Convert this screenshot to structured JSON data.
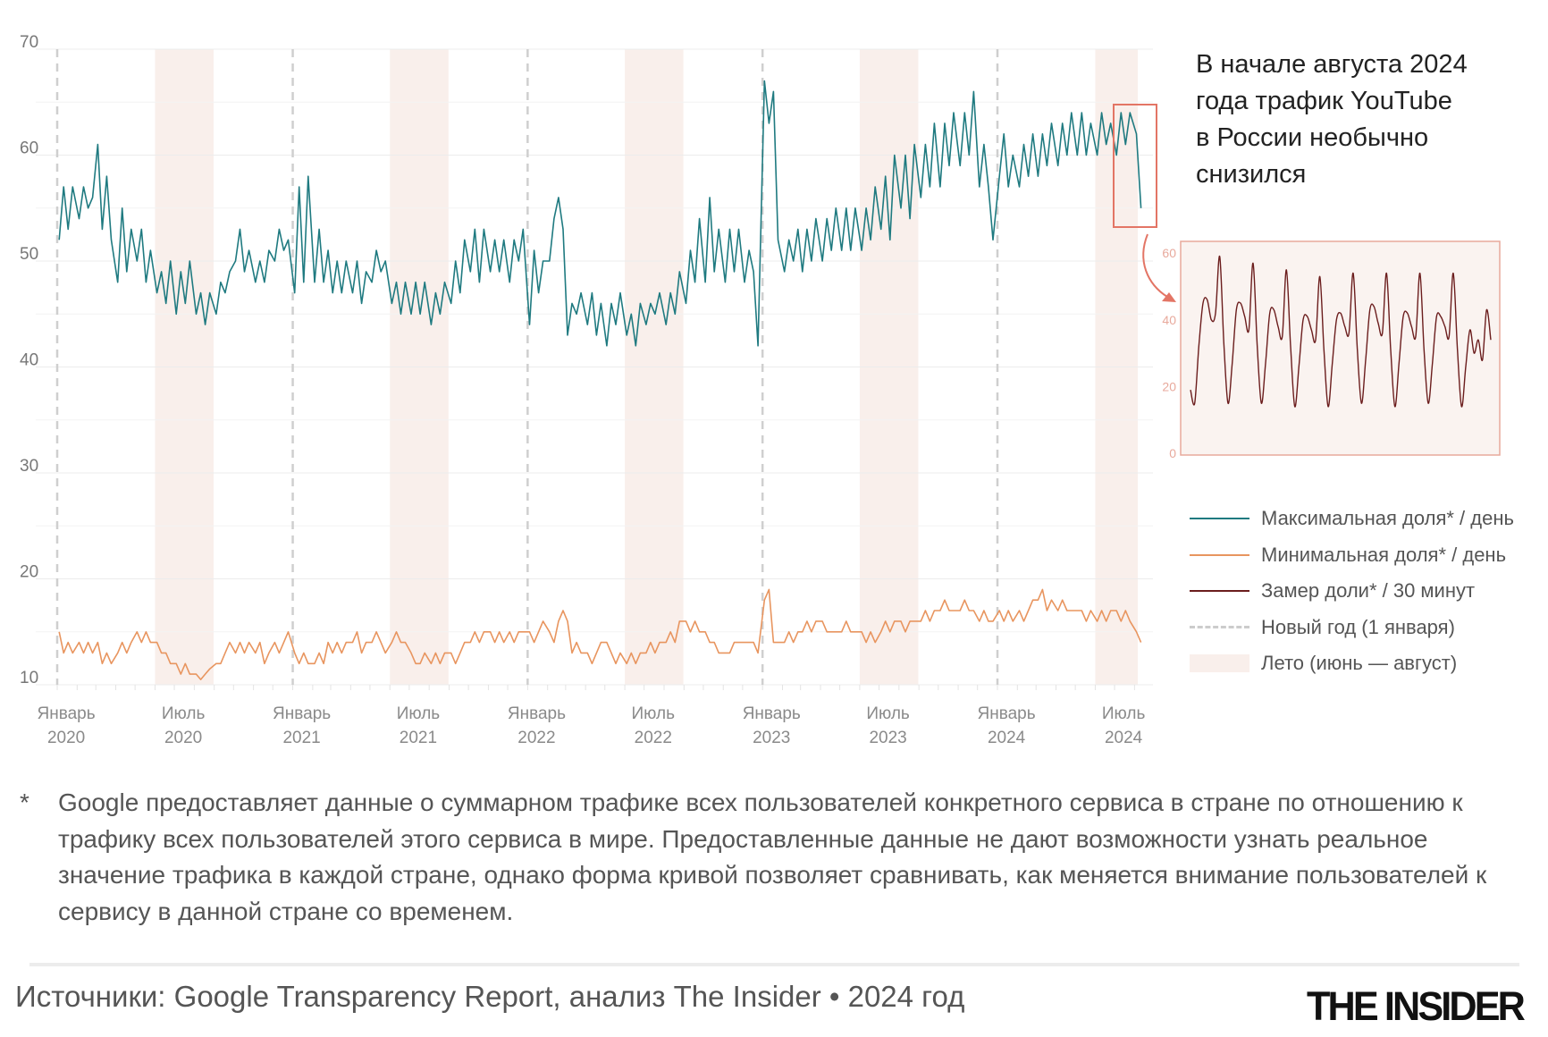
{
  "chart_data": {
    "type": "line",
    "ylim": [
      10,
      70
    ],
    "yticks": [
      70,
      60,
      50,
      40,
      30,
      20,
      10
    ],
    "grid": true,
    "x_range": [
      "2020-01-01",
      "2024-08-11"
    ],
    "xticks": [
      {
        "date": "2020-01-15",
        "line1": "Январь",
        "line2": "2020"
      },
      {
        "date": "2020-07-15",
        "line1": "Июль",
        "line2": "2020"
      },
      {
        "date": "2021-01-15",
        "line1": "Январь",
        "line2": "2021"
      },
      {
        "date": "2021-07-15",
        "line1": "Июль",
        "line2": "2021"
      },
      {
        "date": "2022-01-15",
        "line1": "Январь",
        "line2": "2022"
      },
      {
        "date": "2022-07-15",
        "line1": "Июль",
        "line2": "2022"
      },
      {
        "date": "2023-01-15",
        "line1": "Январь",
        "line2": "2023"
      },
      {
        "date": "2023-07-15",
        "line1": "Июль",
        "line2": "2023"
      },
      {
        "date": "2024-01-15",
        "line1": "Январь",
        "line2": "2024"
      },
      {
        "date": "2024-07-15",
        "line1": "Июль",
        "line2": "2024"
      }
    ],
    "new_year_lines": [
      "2020-01-01",
      "2021-01-01",
      "2022-01-01",
      "2023-01-01",
      "2024-01-01"
    ],
    "summer_bands": [
      [
        "2020-06-01",
        "2020-08-31"
      ],
      [
        "2021-06-01",
        "2021-08-31"
      ],
      [
        "2022-06-01",
        "2022-08-31"
      ],
      [
        "2023-06-01",
        "2023-08-31"
      ],
      [
        "2024-06-01",
        "2024-08-31"
      ]
    ],
    "series": [
      {
        "name": "Максимальная доля* / день",
        "color": "#1f7a80",
        "weekly_values_by_month": {
          "2020-01": [
            52,
            57,
            53,
            57
          ],
          "2020-02": [
            54,
            57,
            55,
            56
          ],
          "2020-03": [
            61,
            53,
            58,
            52
          ],
          "2020-04": [
            48,
            55,
            49,
            53
          ],
          "2020-05": [
            50,
            53,
            48,
            51
          ],
          "2020-06": [
            47,
            49,
            46,
            50
          ],
          "2020-07": [
            45,
            49,
            46,
            50
          ],
          "2020-08": [
            45,
            47,
            44,
            47
          ],
          "2020-09": [
            45,
            48,
            47,
            49
          ],
          "2020-10": [
            50,
            53,
            49,
            51
          ],
          "2020-11": [
            48,
            50,
            48,
            51
          ],
          "2020-12": [
            50,
            53,
            51,
            52
          ],
          "2021-01": [
            47,
            57,
            48,
            58
          ],
          "2021-02": [
            48,
            53,
            48,
            51
          ],
          "2021-03": [
            47,
            50,
            47,
            50
          ],
          "2021-04": [
            47,
            50,
            46,
            49
          ],
          "2021-05": [
            48,
            51,
            49,
            50
          ],
          "2021-06": [
            46,
            48,
            45,
            48
          ],
          "2021-07": [
            45,
            48,
            45,
            48
          ],
          "2021-08": [
            44,
            47,
            45,
            48
          ],
          "2021-09": [
            46,
            50,
            47,
            52
          ],
          "2021-10": [
            49,
            53,
            48,
            53
          ],
          "2021-11": [
            49,
            52,
            49,
            52
          ],
          "2021-12": [
            48,
            52,
            50,
            53
          ],
          "2022-01": [
            44,
            51,
            47,
            50
          ],
          "2022-02": [
            50,
            54,
            56,
            53
          ],
          "2022-03": [
            43,
            46,
            45,
            47
          ],
          "2022-04": [
            44,
            47,
            43,
            46
          ],
          "2022-05": [
            42,
            46,
            44,
            47
          ],
          "2022-06": [
            43,
            45,
            42,
            46
          ],
          "2022-07": [
            44,
            46,
            45,
            47
          ],
          "2022-08": [
            44,
            47,
            45,
            49
          ],
          "2022-09": [
            46,
            51,
            48,
            54
          ],
          "2022-10": [
            48,
            56,
            49,
            53
          ],
          "2022-11": [
            48,
            53,
            49,
            53
          ],
          "2022-12": [
            48,
            51,
            49,
            42
          ],
          "2023-01": [
            67,
            63,
            66,
            52
          ],
          "2023-02": [
            49,
            52,
            50,
            53
          ],
          "2023-03": [
            49,
            53,
            50,
            54
          ],
          "2023-04": [
            50,
            54,
            51,
            55
          ],
          "2023-05": [
            51,
            55,
            51,
            55
          ],
          "2023-06": [
            51,
            55,
            52,
            57
          ],
          "2023-07": [
            53,
            58,
            52,
            60
          ],
          "2023-08": [
            55,
            60,
            54,
            61
          ],
          "2023-09": [
            56,
            61,
            57,
            63
          ],
          "2023-10": [
            57,
            63,
            59,
            64
          ],
          "2023-11": [
            59,
            64,
            60,
            66
          ],
          "2023-12": [
            57,
            61,
            57,
            52
          ],
          "2024-01": [
            58,
            62,
            57,
            60
          ],
          "2024-02": [
            57,
            61,
            58,
            62
          ],
          "2024-03": [
            58,
            62,
            59,
            63
          ],
          "2024-04": [
            59,
            63,
            60,
            64
          ],
          "2024-05": [
            60,
            64,
            60,
            63
          ],
          "2024-06": [
            60,
            64,
            61,
            63
          ],
          "2024-07": [
            60,
            64,
            61,
            64
          ],
          "2024-08": [
            62,
            55
          ]
        }
      },
      {
        "name": "Минимальная доля* / день",
        "color": "#e8955f",
        "weekly_values_by_month": {
          "2020-01": [
            15,
            13,
            14,
            13
          ],
          "2020-02": [
            14,
            13,
            14,
            13
          ],
          "2020-03": [
            14,
            12,
            13,
            12
          ],
          "2020-04": [
            13,
            14,
            13,
            14
          ],
          "2020-05": [
            15,
            14,
            15,
            14
          ],
          "2020-06": [
            14,
            13,
            13,
            12
          ],
          "2020-07": [
            12,
            11,
            12,
            11
          ],
          "2020-08": [
            11,
            10.5,
            11,
            11.5
          ],
          "2020-09": [
            12,
            12,
            13,
            14
          ],
          "2020-10": [
            13,
            14,
            13,
            14
          ],
          "2020-11": [
            13,
            14,
            12,
            13
          ],
          "2020-12": [
            14,
            13,
            14,
            15
          ],
          "2021-01": [
            13,
            12,
            13,
            12
          ],
          "2021-02": [
            12,
            13,
            12,
            14
          ],
          "2021-03": [
            13,
            14,
            13,
            14
          ],
          "2021-04": [
            14,
            15,
            13,
            14
          ],
          "2021-05": [
            14,
            15,
            14,
            13
          ],
          "2021-06": [
            14,
            15,
            14,
            14
          ],
          "2021-07": [
            13,
            12,
            12,
            13
          ],
          "2021-08": [
            12,
            13,
            12,
            13
          ],
          "2021-09": [
            13,
            12,
            13,
            14
          ],
          "2021-10": [
            14,
            15,
            14,
            15
          ],
          "2021-11": [
            15,
            14,
            15,
            14
          ],
          "2021-12": [
            15,
            14,
            15,
            15
          ],
          "2022-01": [
            15,
            14,
            15,
            16
          ],
          "2022-02": [
            15,
            14,
            16,
            17
          ],
          "2022-03": [
            16,
            13,
            14,
            13
          ],
          "2022-04": [
            13,
            12,
            13,
            14
          ],
          "2022-05": [
            14,
            13,
            12,
            13
          ],
          "2022-06": [
            12,
            13,
            12,
            13
          ],
          "2022-07": [
            13,
            14,
            13,
            14
          ],
          "2022-08": [
            14,
            15,
            14,
            16
          ],
          "2022-09": [
            16,
            15,
            16,
            15
          ],
          "2022-10": [
            15,
            14,
            14,
            13
          ],
          "2022-11": [
            13,
            13,
            14,
            14
          ],
          "2022-12": [
            14,
            14,
            14,
            13
          ],
          "2023-01": [
            18,
            19,
            14,
            14
          ],
          "2023-02": [
            14,
            15,
            14,
            15
          ],
          "2023-03": [
            15,
            16,
            15,
            16
          ],
          "2023-04": [
            16,
            15,
            15,
            15
          ],
          "2023-05": [
            15,
            16,
            15,
            15
          ],
          "2023-06": [
            15,
            14,
            15,
            14
          ],
          "2023-07": [
            15,
            16,
            15,
            16
          ],
          "2023-08": [
            16,
            15,
            16,
            16
          ],
          "2023-09": [
            16,
            17,
            16,
            17
          ],
          "2023-10": [
            17,
            18,
            17,
            17
          ],
          "2023-11": [
            17,
            18,
            17,
            17
          ],
          "2023-12": [
            16,
            17,
            16,
            16
          ],
          "2024-01": [
            17,
            16,
            17,
            16
          ],
          "2024-02": [
            17,
            16,
            17,
            18
          ],
          "2024-03": [
            18,
            19,
            17,
            18
          ],
          "2024-04": [
            17,
            18,
            17,
            17
          ],
          "2024-05": [
            17,
            17,
            16,
            17
          ],
          "2024-06": [
            16,
            17,
            16,
            17
          ],
          "2024-07": [
            17,
            16,
            17,
            16
          ],
          "2024-08": [
            15,
            14
          ]
        }
      }
    ],
    "inset": {
      "series_name": "Замер доли* / 30 минут",
      "color": "#6b1d1d",
      "ylim": [
        0,
        62
      ],
      "yticks": [
        60,
        40,
        20,
        0
      ],
      "values": [
        19,
        15,
        32,
        45,
        46,
        40,
        42,
        59,
        33,
        15,
        27,
        43,
        45,
        41,
        37,
        57,
        32,
        15,
        27,
        42,
        43,
        38,
        35,
        55,
        32,
        14,
        26,
        40,
        41,
        37,
        34,
        53,
        31,
        14,
        27,
        40,
        42,
        38,
        36,
        54,
        31,
        15,
        28,
        43,
        44,
        39,
        36,
        54,
        31,
        14,
        27,
        41,
        42,
        38,
        35,
        54,
        31,
        15,
        27,
        41,
        41,
        38,
        35,
        54,
        31,
        14,
        26,
        37,
        30,
        34,
        28,
        43,
        34
      ]
    }
  },
  "annotation": {
    "lines": [
      "В начале августа 2024",
      "года трафик YouTube",
      "в России необычно",
      "снизился"
    ]
  },
  "legend": [
    {
      "label": "Максимальная доля* / день",
      "kind": "line",
      "color": "#1f7a80"
    },
    {
      "label": "Минимальная доля* / день",
      "kind": "line",
      "color": "#e8955f"
    },
    {
      "label": "Замер доли* / 30 минут",
      "kind": "line",
      "color": "#6b1d1d"
    },
    {
      "label": "Новый год (1 января)",
      "kind": "dashed",
      "color": "#cccccc"
    },
    {
      "label": "Лето (июнь — август)",
      "kind": "band",
      "color": "#f9efeb"
    }
  ],
  "colors": {
    "highlight": "#e37565",
    "summer": "#f9efeb",
    "inset_border": "#e8a99c"
  },
  "footnote": {
    "star": "*",
    "text": "Google предоставляет данные о суммарном трафике всех пользователей конкретного сервиса в стране по отношению к трафику всех пользователей этого сервиса в мире. Предоставленные данные не дают возможности узнать реальное значение трафика в каждой стране, однако форма кривой позволяет сравнивать, как меняется внимание пользователей к сервису в данной стране со временем."
  },
  "source": "Источники: Google Transparency Report, анализ The Insider • 2024 год",
  "logo": "THE INSIDER"
}
